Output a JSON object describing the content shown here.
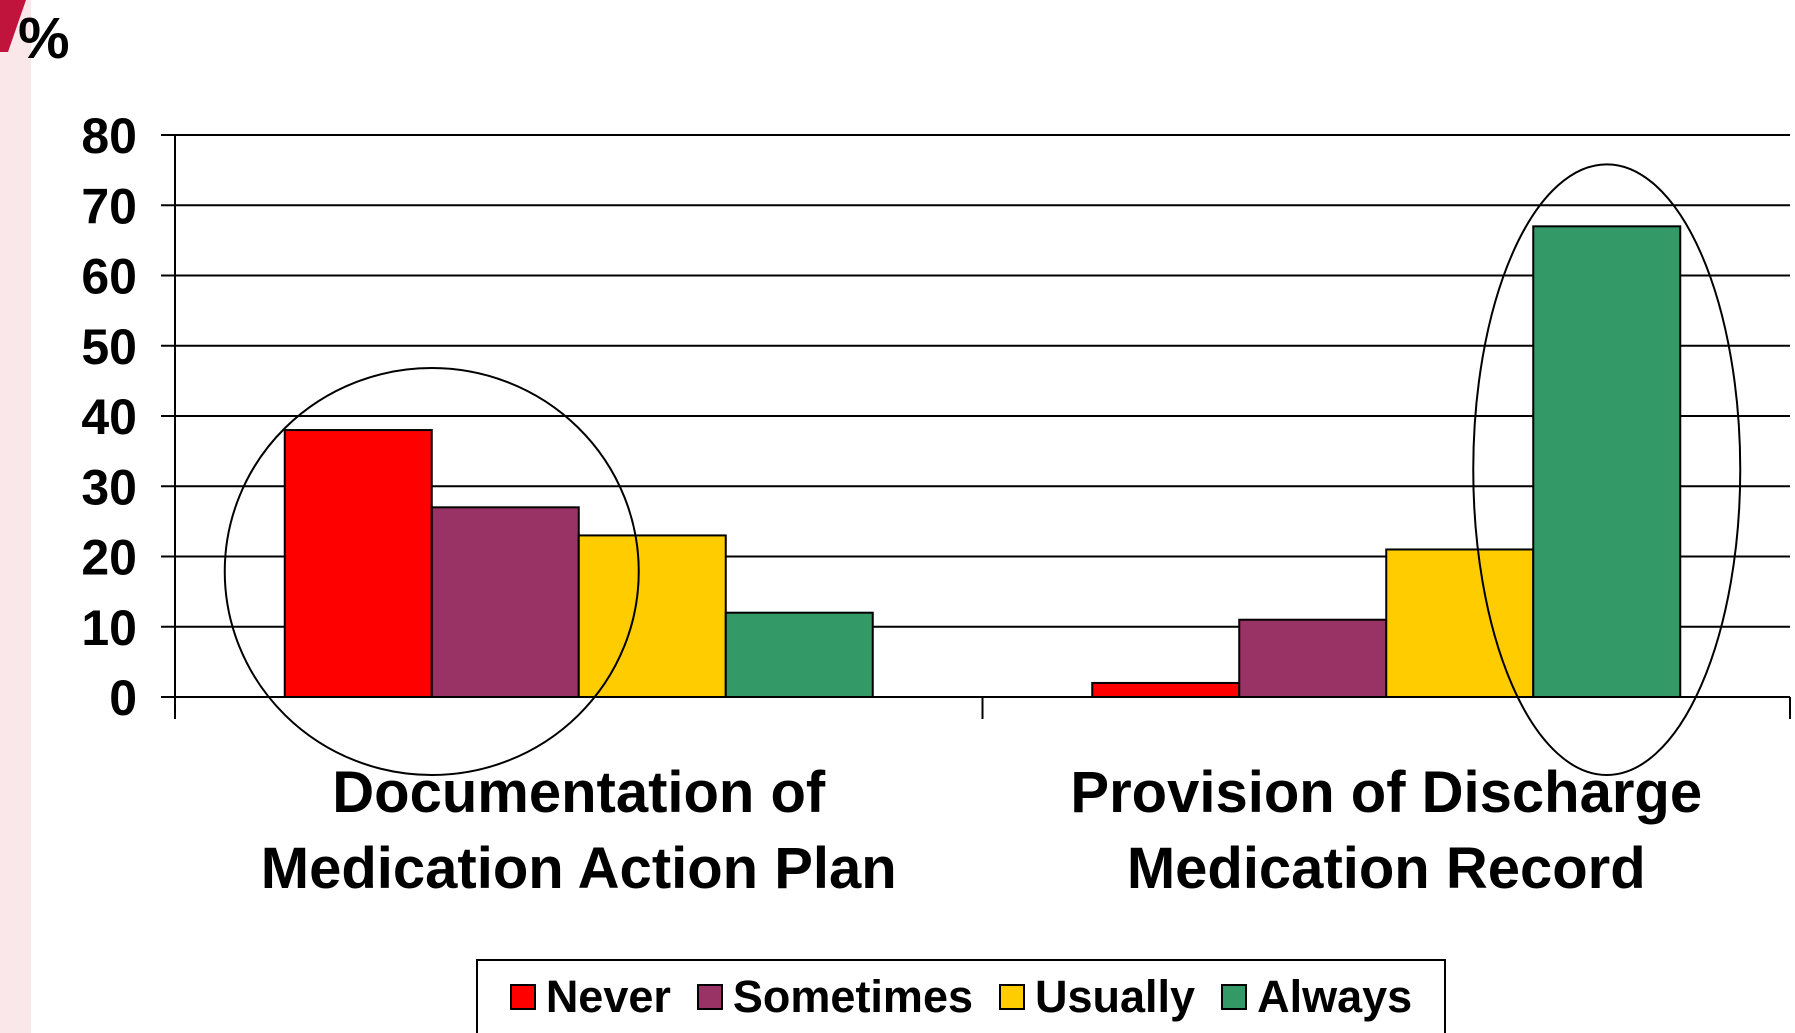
{
  "chart_data": {
    "type": "bar",
    "ylabel": "%",
    "ylim": [
      0,
      80
    ],
    "yticks": [
      0,
      10,
      20,
      30,
      40,
      50,
      60,
      70,
      80
    ],
    "grid": true,
    "legend_position": "bottom",
    "categories": [
      [
        "Documentation of",
        "Medication Action Plan"
      ],
      [
        "Provision of Discharge",
        "Medication Record"
      ]
    ],
    "series": [
      {
        "name": "Never",
        "color": "#ff0000",
        "values": [
          38,
          2
        ]
      },
      {
        "name": "Sometimes",
        "color": "#993366",
        "values": [
          27,
          11
        ]
      },
      {
        "name": "Usually",
        "color": "#ffcc00",
        "values": [
          23,
          21
        ]
      },
      {
        "name": "Always",
        "color": "#339966",
        "values": [
          12,
          67
        ]
      }
    ],
    "annotations": [
      {
        "shape": "ellipse",
        "category": 0,
        "series": [
          "Never",
          "Sometimes"
        ]
      },
      {
        "shape": "ellipse",
        "category": 1,
        "series": [
          "Always"
        ]
      }
    ]
  },
  "legend": {
    "items": [
      {
        "label": "Never",
        "color": "#ff0000"
      },
      {
        "label": "Sometimes",
        "color": "#993366"
      },
      {
        "label": "Usually",
        "color": "#ffcc00"
      },
      {
        "label": "Always",
        "color": "#339966"
      }
    ]
  }
}
